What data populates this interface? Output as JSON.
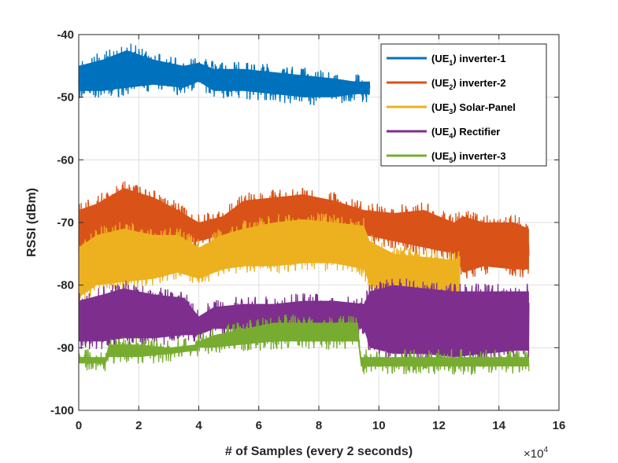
{
  "chart_data": {
    "type": "line",
    "title": "",
    "xlabel": "# of Samples (every 2 seconds)",
    "ylabel": "RSSI (dBm)",
    "xlim": [
      0,
      16
    ],
    "ylim": [
      -100,
      -40
    ],
    "x_ticks": [
      "0",
      "2",
      "4",
      "6",
      "8",
      "10",
      "12",
      "14",
      "16"
    ],
    "y_ticks": [
      "-40",
      "-50",
      "-60",
      "-70",
      "-80",
      "-90",
      "-100"
    ],
    "x_exponent": {
      "base": "×10",
      "power": "4"
    },
    "grid": true,
    "legend_position": "top-right",
    "series": [
      {
        "name": "(UE1) inverter-1",
        "legend_parts": [
          "(UE",
          "1",
          ") inverter-1"
        ],
        "color": "#0072BD",
        "x": [
          0,
          0.8,
          1.6,
          2.5,
          3.5,
          4.0,
          4.5,
          5.5,
          6.5,
          7.5,
          8.5,
          9.2,
          9.7
        ],
        "low": [
          -49,
          -49,
          -48.5,
          -48,
          -48.5,
          -47.5,
          -49,
          -49,
          -49.5,
          -50,
          -50,
          -49.5,
          -49.5
        ],
        "high": [
          -45,
          -44,
          -42.5,
          -44,
          -45,
          -44.5,
          -45.5,
          -45.5,
          -46,
          -46.5,
          -47,
          -47.5,
          -47.5
        ]
      },
      {
        "name": "(UE2) inverter-2",
        "legend_parts": [
          "(UE",
          "2",
          ") inverter-2"
        ],
        "color": "#D95319",
        "x": [
          0,
          0.6,
          1.5,
          2.5,
          3.3,
          4.0,
          4.8,
          5.5,
          6.5,
          7.5,
          8.5,
          9.5,
          10.5,
          11.5,
          12.5,
          12.8,
          13.5,
          14.5,
          15.0
        ],
        "low": [
          -75,
          -73,
          -72.5,
          -73,
          -73.5,
          -73,
          -72,
          -71,
          -70.5,
          -70.5,
          -71,
          -72,
          -73,
          -74,
          -75,
          -78,
          -77,
          -77.5,
          -77.5
        ],
        "high": [
          -68,
          -67,
          -64.5,
          -66,
          -68,
          -70,
          -69,
          -66.5,
          -66,
          -65.5,
          -66.5,
          -68,
          -68.5,
          -68,
          -70,
          -69,
          -70,
          -70,
          -71
        ]
      },
      {
        "name": "(UE3) Solar-Panel",
        "legend_parts": [
          "(UE",
          "3",
          ") Solar-Panel"
        ],
        "color": "#EDB120",
        "x": [
          0,
          0.6,
          1.5,
          2.5,
          3.3,
          4.0,
          4.8,
          5.5,
          6.5,
          7.5,
          8.5,
          9.5,
          9.7,
          10.5,
          11.5,
          12.5,
          12.7
        ],
        "low": [
          -82,
          -80,
          -79.5,
          -79,
          -78,
          -79,
          -77.5,
          -77,
          -77,
          -76.5,
          -76.5,
          -77.5,
          -80,
          -81,
          -81.5,
          -81.5,
          -81.5
        ],
        "high": [
          -74,
          -72,
          -71,
          -72,
          -72,
          -74,
          -72,
          -71,
          -70,
          -69.5,
          -70,
          -70.5,
          -73,
          -75,
          -75.5,
          -76,
          -76
        ]
      },
      {
        "name": "(UE4) Rectifier",
        "legend_parts": [
          "(UE",
          "4",
          ") Rectifier"
        ],
        "color": "#7E2F8E",
        "x": [
          0,
          0.8,
          1.5,
          2.5,
          3.5,
          4.0,
          4.5,
          5.5,
          6.5,
          7.5,
          8.5,
          9.5,
          9.7,
          10.5,
          11.5,
          12.5,
          13.5,
          14.5,
          15.0
        ],
        "low": [
          -89,
          -89,
          -88.5,
          -88.5,
          -88,
          -88,
          -87,
          -87,
          -87,
          -86.5,
          -86.5,
          -87,
          -90,
          -91,
          -91,
          -91.5,
          -91,
          -90.5,
          -90.5
        ],
        "high": [
          -82.5,
          -81.5,
          -80.5,
          -81.5,
          -82,
          -85,
          -83.5,
          -83,
          -83,
          -82.5,
          -82.5,
          -83,
          -81,
          -80,
          -80.5,
          -81,
          -81,
          -81,
          -81
        ]
      },
      {
        "name": "(UE5) inverter-3",
        "legend_parts": [
          "(UE",
          "5",
          ") inverter-3"
        ],
        "color": "#77AC30",
        "x": [
          0,
          0.9,
          1.0,
          2.0,
          3.0,
          3.9,
          4.0,
          4.5,
          5.5,
          6.5,
          7.5,
          8.5,
          9.3,
          9.4,
          10.5,
          11.5,
          12.5,
          13.5,
          14.5,
          15.0
        ],
        "low": [
          -92.5,
          -92.5,
          -91.5,
          -91.5,
          -91,
          -90.5,
          -90,
          -90,
          -89.5,
          -89,
          -89,
          -89,
          -89,
          -93,
          -93,
          -93,
          -93,
          -93,
          -93,
          -93
        ],
        "high": [
          -91.5,
          -91.5,
          -89.5,
          -89.5,
          -90,
          -89.5,
          -89,
          -88,
          -87,
          -86,
          -86,
          -86,
          -86,
          -91.5,
          -91.5,
          -91.5,
          -91.5,
          -91.5,
          -91.5,
          -91.5
        ]
      }
    ]
  }
}
